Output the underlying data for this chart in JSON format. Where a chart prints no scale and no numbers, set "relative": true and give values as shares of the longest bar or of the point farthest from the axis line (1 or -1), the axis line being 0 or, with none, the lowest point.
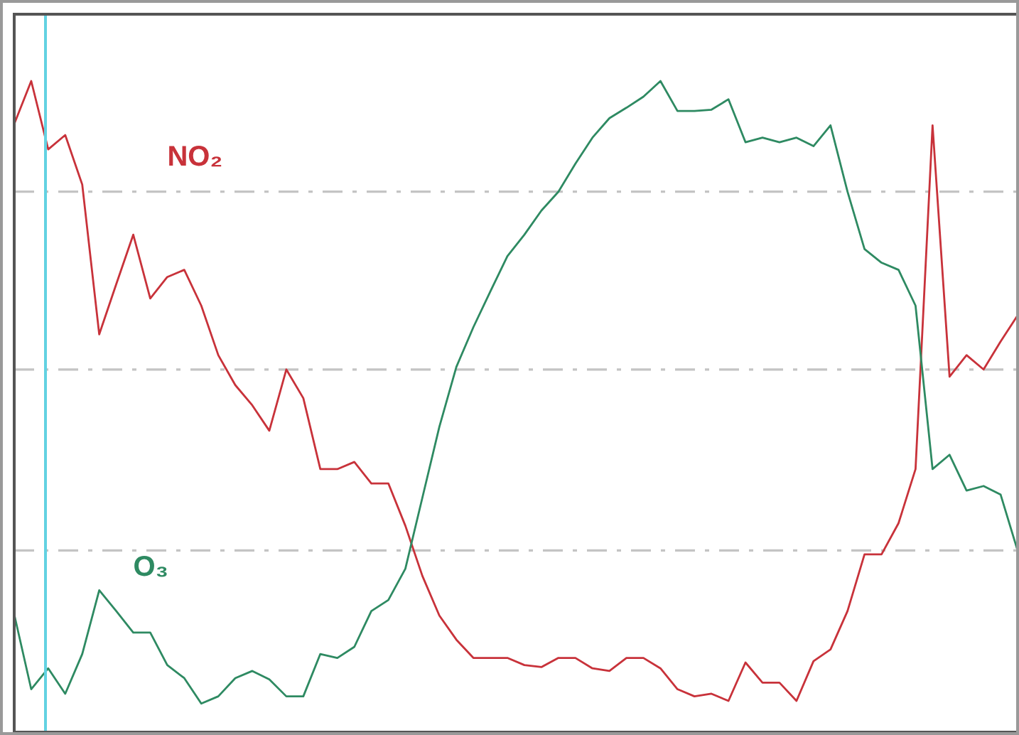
{
  "chart_data": {
    "type": "line",
    "relative": true,
    "categories": [
      null,
      null,
      null,
      null,
      null,
      null,
      null,
      null,
      null,
      null,
      null,
      null,
      null,
      null,
      null,
      null,
      null,
      null,
      null,
      null,
      null,
      null,
      null,
      null,
      null,
      null,
      null,
      null,
      null,
      null,
      null,
      null,
      null,
      null,
      null,
      null,
      null,
      null,
      null,
      null,
      null,
      null,
      null,
      null,
      null,
      null,
      null,
      null,
      null,
      null,
      null,
      null,
      null,
      null,
      null,
      null,
      null,
      null,
      null,
      null
    ],
    "series": [
      {
        "name": "NO₂",
        "color": "#c8323a",
        "values": [
          0.934,
          1.0,
          0.895,
          0.917,
          0.841,
          0.611,
          0.688,
          0.764,
          0.666,
          0.699,
          0.71,
          0.655,
          0.579,
          0.533,
          0.502,
          0.463,
          0.557,
          0.513,
          0.404,
          0.404,
          0.415,
          0.382,
          0.382,
          0.317,
          0.24,
          0.179,
          0.142,
          0.114,
          0.114,
          0.114,
          0.103,
          0.1,
          0.114,
          0.114,
          0.098,
          0.094,
          0.114,
          0.114,
          0.098,
          0.066,
          0.055,
          0.059,
          0.048,
          0.107,
          0.076,
          0.076,
          0.048,
          0.109,
          0.127,
          0.186,
          0.273,
          0.273,
          0.321,
          0.404,
          0.932,
          0.546,
          0.579,
          0.557,
          0.6,
          0.64
        ]
      },
      {
        "name": "O₃",
        "color": "#2e8a62",
        "values": [
          0.181,
          0.066,
          0.098,
          0.059,
          0.12,
          0.218,
          0.186,
          0.153,
          0.153,
          0.103,
          0.083,
          0.044,
          0.055,
          0.083,
          0.094,
          0.081,
          0.055,
          0.055,
          0.12,
          0.114,
          0.131,
          0.186,
          0.203,
          0.251,
          0.36,
          0.469,
          0.561,
          0.622,
          0.677,
          0.731,
          0.764,
          0.801,
          0.83,
          0.873,
          0.913,
          0.943,
          0.959,
          0.976,
          1.0,
          0.954,
          0.954,
          0.956,
          0.972,
          0.906,
          0.913,
          0.906,
          0.913,
          0.9,
          0.932,
          0.83,
          0.742,
          0.721,
          0.71,
          0.655,
          0.404,
          0.426,
          0.371,
          0.378,
          0.365,
          0.279
        ]
      }
    ],
    "ref_lines": [
      {
        "axis": "y",
        "value": 0.83,
        "label": null,
        "color": "#c4c4c4",
        "line_style": "dashed"
      },
      {
        "axis": "y",
        "value": 0.557,
        "label": null,
        "color": "#c4c4c4",
        "line_style": "dashed"
      },
      {
        "axis": "y",
        "value": 0.279,
        "label": null,
        "color": "#c4c4c4",
        "line_style": "dashed"
      }
    ],
    "line_style": "solid",
    "marker": "none"
  }
}
